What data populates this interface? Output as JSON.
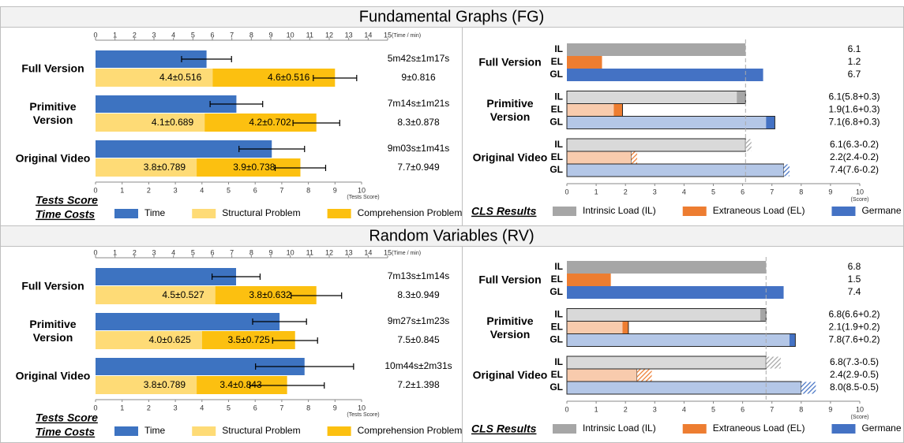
{
  "section_titles": [
    "Fundamental Graphs (FG)",
    "Random Variables (RV)"
  ],
  "chart_data": [
    {
      "type": "stacked-bar",
      "categories": [
        "Full Version",
        "Primitive Version",
        "Original Video"
      ],
      "time": {
        "name": "Time",
        "color": "#3d73c1",
        "values": [
          5.7,
          7.233,
          9.05
        ],
        "errors": [
          1.283,
          1.35,
          1.683
        ],
        "value_labels": [
          "5m42s±1m17s",
          "7m14s±1m21s",
          "9m03s±1m41s"
        ]
      },
      "series": [
        {
          "name": "Structural Problem",
          "color": "#fedb76",
          "values": [
            4.4,
            4.1,
            3.8
          ],
          "errors": [
            0.516,
            0.689,
            0.789
          ],
          "value_labels": [
            "4.4±0.516",
            "4.1±0.689",
            "3.8±0.789"
          ]
        },
        {
          "name": "Comprehension Problem",
          "color": "#fcc010",
          "values": [
            4.6,
            4.2,
            3.9
          ],
          "errors": [
            0.516,
            0.702,
            0.738
          ],
          "value_labels": [
            "4.6±0.516",
            "4.2±0.702",
            "3.9±0.738"
          ]
        }
      ],
      "total": {
        "values": [
          9,
          8.3,
          7.7
        ],
        "errors": [
          0.816,
          0.878,
          0.949
        ],
        "value_labels": [
          "9±0.816",
          "8.3±0.878",
          "7.7±0.949"
        ]
      },
      "x2lim": [
        0,
        15
      ],
      "x2ticks": [
        0,
        1,
        2,
        3,
        4,
        5,
        6,
        7,
        8,
        9,
        10,
        11,
        12,
        13,
        14,
        15
      ],
      "x2label": "(Time / min)",
      "xlim": [
        0,
        10
      ],
      "xticks": [
        0,
        1,
        2,
        3,
        4,
        5,
        6,
        7,
        8,
        9,
        10
      ],
      "xlabel": "(Tests Score)",
      "axis_titles": [
        "Tests Score",
        "Time Costs"
      ]
    },
    {
      "type": "cls-bar",
      "title": "CLS Results",
      "categories": [
        "Full Version",
        "Primitive Version",
        "Original Video"
      ],
      "rows": [
        "IL",
        "EL",
        "GL"
      ],
      "series": [
        {
          "name": "Intrinsic Load (IL)",
          "color": "#a6a6a6",
          "light": "#d9d9d9",
          "values": [
            6.1,
            6.1,
            6.1
          ],
          "reference": [
            null,
            5.8,
            6.3
          ],
          "change": [
            null,
            0.3,
            -0.2
          ],
          "value_labels": [
            "6.1",
            "6.1(5.8+0.3)",
            "6.1(6.3-0.2)"
          ]
        },
        {
          "name": "Extraneous Load (EL)",
          "color": "#ed7d31",
          "light": "#f8cbad",
          "values": [
            1.2,
            1.9,
            2.2
          ],
          "reference": [
            null,
            1.6,
            2.4
          ],
          "change": [
            null,
            0.3,
            -0.2
          ],
          "value_labels": [
            "1.2",
            "1.9(1.6+0.3)",
            "2.2(2.4-0.2)"
          ]
        },
        {
          "name": "Germane Load (GL)",
          "color": "#4472c4",
          "light": "#b4c7e7",
          "values": [
            6.7,
            7.1,
            7.4
          ],
          "reference": [
            null,
            6.8,
            7.6
          ],
          "change": [
            null,
            0.3,
            -0.2
          ],
          "value_labels": [
            "6.7",
            "7.1(6.8+0.3)",
            "7.4(7.6-0.2)"
          ]
        }
      ],
      "xlim": [
        0,
        10
      ],
      "xticks": [
        0,
        1,
        2,
        3,
        4,
        5,
        6,
        7,
        8,
        9,
        10
      ],
      "xlabel": "(Score)"
    },
    {
      "type": "stacked-bar",
      "categories": [
        "Full Version",
        "Primitive Version",
        "Original Video"
      ],
      "time": {
        "name": "Time",
        "color": "#3d73c1",
        "values": [
          7.217,
          9.45,
          10.733
        ],
        "errors": [
          1.233,
          1.383,
          2.517
        ],
        "value_labels": [
          "7m13s±1m14s",
          "9m27s±1m23s",
          "10m44s±2m31s"
        ]
      },
      "series": [
        {
          "name": "Structural Problem",
          "color": "#fedb76",
          "values": [
            4.5,
            4.0,
            3.8
          ],
          "errors": [
            0.527,
            0.625,
            0.789
          ],
          "value_labels": [
            "4.5±0.527",
            "4.0±0.625",
            "3.8±0.789"
          ]
        },
        {
          "name": "Comprehension Problem",
          "color": "#fcc010",
          "values": [
            3.8,
            3.5,
            3.4
          ],
          "errors": [
            0.632,
            0.725,
            0.843
          ],
          "value_labels": [
            "3.8±0.632",
            "3.5±0.725",
            "3.4±0.843"
          ]
        }
      ],
      "total": {
        "values": [
          8.3,
          7.5,
          7.2
        ],
        "errors": [
          0.949,
          0.845,
          1.398
        ],
        "value_labels": [
          "8.3±0.949",
          "7.5±0.845",
          "7.2±1.398"
        ]
      },
      "x2lim": [
        0,
        15
      ],
      "x2ticks": [
        0,
        1,
        2,
        3,
        4,
        5,
        6,
        7,
        8,
        9,
        10,
        11,
        12,
        13,
        14,
        15
      ],
      "x2label": "(Time / min)",
      "xlim": [
        0,
        10
      ],
      "xticks": [
        0,
        1,
        2,
        3,
        4,
        5,
        6,
        7,
        8,
        9,
        10
      ],
      "xlabel": "(Tests Score)",
      "axis_titles": [
        "Tests Score",
        "Time Costs"
      ]
    },
    {
      "type": "cls-bar",
      "title": "CLS Results",
      "categories": [
        "Full Version",
        "Primitive Version",
        "Original Video"
      ],
      "rows": [
        "IL",
        "EL",
        "GL"
      ],
      "series": [
        {
          "name": "Intrinsic Load (IL)",
          "color": "#a6a6a6",
          "light": "#d9d9d9",
          "values": [
            6.8,
            6.8,
            6.8
          ],
          "reference": [
            null,
            6.6,
            7.3
          ],
          "change": [
            null,
            0.2,
            -0.5
          ],
          "value_labels": [
            "6.8",
            "6.8(6.6+0.2)",
            "6.8(7.3-0.5)"
          ]
        },
        {
          "name": "Extraneous Load (EL)",
          "color": "#ed7d31",
          "light": "#f8cbad",
          "values": [
            1.5,
            2.1,
            2.4
          ],
          "reference": [
            null,
            1.9,
            2.9
          ],
          "change": [
            null,
            0.2,
            -0.5
          ],
          "value_labels": [
            "1.5",
            "2.1(1.9+0.2)",
            "2.4(2.9-0.5)"
          ]
        },
        {
          "name": "Germane Load (GL)",
          "color": "#4472c4",
          "light": "#b4c7e7",
          "values": [
            7.4,
            7.8,
            8.0
          ],
          "reference": [
            null,
            7.6,
            8.5
          ],
          "change": [
            null,
            0.2,
            -0.5
          ],
          "value_labels": [
            "7.4",
            "7.8(7.6+0.2)",
            "8.0(8.5-0.5)"
          ]
        }
      ],
      "xlim": [
        0,
        10
      ],
      "xticks": [
        0,
        1,
        2,
        3,
        4,
        5,
        6,
        7,
        8,
        9,
        10
      ],
      "xlabel": "(Score)"
    }
  ]
}
